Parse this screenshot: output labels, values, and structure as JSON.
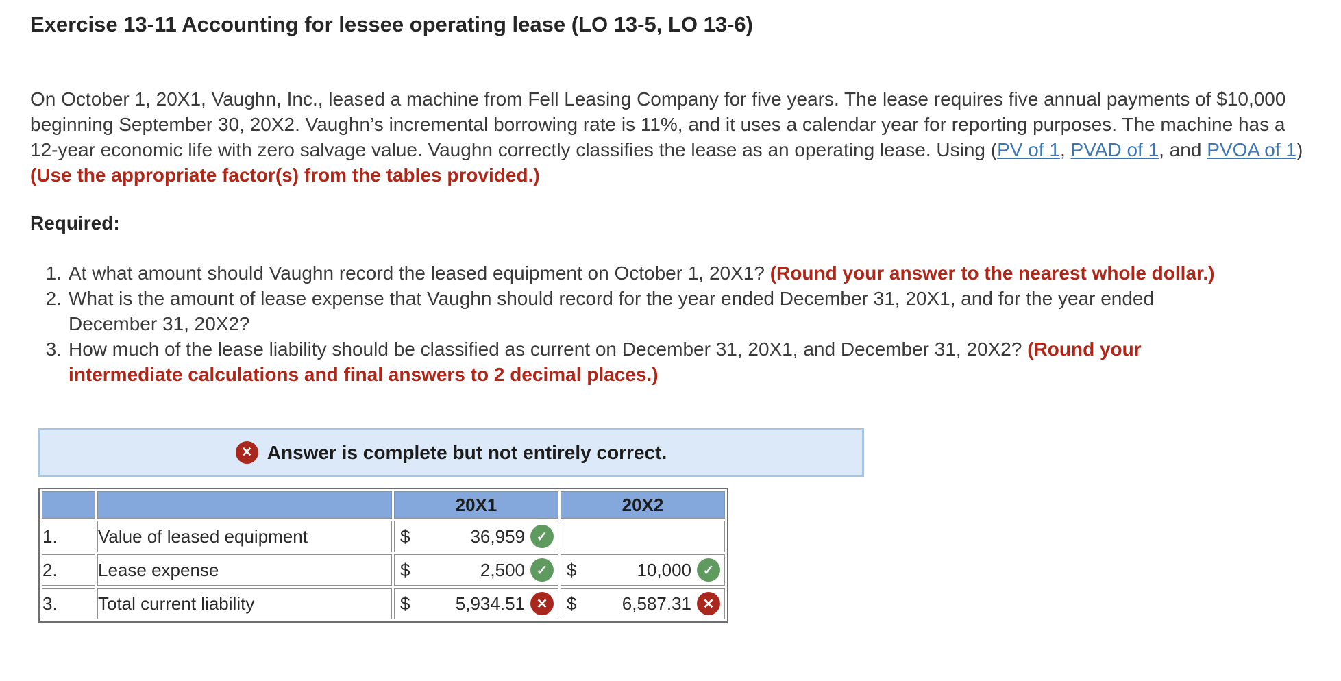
{
  "page": {
    "title": "Exercise 13-11 Accounting for lessee operating lease (LO 13-5, LO 13-6)"
  },
  "problem": {
    "intro_before_links": "On October 1, 20X1, Vaughn, Inc., leased a machine from Fell Leasing Company for five years. The lease requires five annual payments of $10,000 beginning September 30, 20X2. Vaughn’s incremental borrowing rate is 11%, and it uses a calendar year for reporting purposes. The machine has a 12-year economic life with zero salvage value. Vaughn correctly classifies the lease as an operating lease. Using (",
    "link_pv": "PV of 1",
    "sep1": ", ",
    "link_pvad": "PVAD of 1",
    "sep2": ", and ",
    "link_pvoa": "PVOA of 1",
    "after_links": ") ",
    "red_note": "(Use the appropriate factor(s) from the tables provided.)"
  },
  "required": {
    "heading": "Required:",
    "items": [
      {
        "num": "1.",
        "text": "At what amount should Vaughn record the leased equipment on October 1, 20X1? ",
        "red": "(Round your answer to the nearest whole dollar.)"
      },
      {
        "num": "2.",
        "text": "What is the amount of lease expense that Vaughn should record for the year ended December 31, 20X1, and for the year ended December 31, 20X2?",
        "red": ""
      },
      {
        "num": "3.",
        "text": "How much of the lease liability should be classified as current on December 31, 20X1, and December 31, 20X2? ",
        "red": "(Round your intermediate calculations and final answers to 2 decimal places.)"
      }
    ]
  },
  "banner": {
    "message": "Answer is complete but not entirely correct.",
    "icon": "x-circle"
  },
  "table": {
    "year_headers": [
      "20X1",
      "20X2"
    ],
    "rows": [
      {
        "num": "1.",
        "label": "Value of leased equipment",
        "x1": {
          "currency": "$",
          "value": "36,959",
          "status": "correct"
        },
        "x2": {
          "currency": "",
          "value": "",
          "status": "empty"
        }
      },
      {
        "num": "2.",
        "label": "Lease expense",
        "x1": {
          "currency": "$",
          "value": "2,500",
          "status": "correct"
        },
        "x2": {
          "currency": "$",
          "value": "10,000",
          "status": "correct"
        }
      },
      {
        "num": "3.",
        "label": "Total current liability",
        "x1": {
          "currency": "$",
          "value": "5,934.51",
          "status": "incorrect"
        },
        "x2": {
          "currency": "$",
          "value": "6,587.31",
          "status": "incorrect"
        }
      }
    ],
    "icons": {
      "correct_glyph": "✓",
      "incorrect_glyph": "✕"
    }
  },
  "colors": {
    "accent_red_text": "#b02718",
    "link_blue": "#3c77b5",
    "banner_background": "#dbe9f8",
    "banner_border": "#a6c3e1",
    "banner_icon_red": "#a9281e",
    "table_header_blue": "#84a8db",
    "correct_green": "#5f9b5f",
    "incorrect_red": "#a9281e",
    "correct_cell_bg": "#f2f7ee",
    "incorrect_cell_bg": "#fbf1f0"
  }
}
